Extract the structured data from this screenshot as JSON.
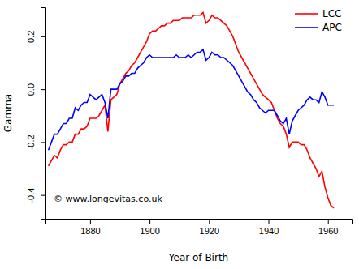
{
  "chart_data": {
    "type": "line",
    "x_label": "Year of Birth",
    "y_label": "Gamma",
    "annotation": "© www.longevitas.co.uk",
    "legend": "top-right",
    "xlim": [
      1865,
      1968
    ],
    "xticks": [
      1880,
      1900,
      1920,
      1940,
      1960
    ],
    "ylim": [
      -0.49,
      0.31
    ],
    "yticks": [
      -0.4,
      -0.2,
      {
        "value": 0,
        "label": "0.0"
      },
      0.2
    ],
    "x": [
      1866,
      1867,
      1868,
      1869,
      1870,
      1871,
      1872,
      1873,
      1874,
      1875,
      1876,
      1877,
      1878,
      1879,
      1880,
      1881,
      1882,
      1883,
      1884,
      1885,
      1886,
      1887,
      1888,
      1889,
      1890,
      1891,
      1892,
      1893,
      1894,
      1895,
      1896,
      1897,
      1898,
      1899,
      1900,
      1901,
      1902,
      1903,
      1904,
      1905,
      1906,
      1907,
      1908,
      1909,
      1910,
      1911,
      1912,
      1913,
      1914,
      1915,
      1916,
      1917,
      1918,
      1919,
      1920,
      1921,
      1922,
      1923,
      1924,
      1925,
      1926,
      1927,
      1928,
      1929,
      1930,
      1931,
      1932,
      1933,
      1934,
      1935,
      1936,
      1937,
      1938,
      1939,
      1940,
      1941,
      1942,
      1943,
      1944,
      1945,
      1946,
      1947,
      1948,
      1949,
      1950,
      1951,
      1952,
      1953,
      1954,
      1955,
      1956,
      1957,
      1958,
      1959,
      1960,
      1961,
      1962
    ],
    "series": [
      {
        "name": "LCC",
        "color": "#ff0000",
        "values": [
          -0.29,
          -0.27,
          -0.25,
          -0.26,
          -0.23,
          -0.21,
          -0.21,
          -0.2,
          -0.2,
          -0.17,
          -0.17,
          -0.15,
          -0.15,
          -0.14,
          -0.11,
          -0.11,
          -0.11,
          -0.1,
          -0.08,
          -0.06,
          -0.16,
          -0.04,
          -0.03,
          -0.02,
          0.02,
          0.04,
          0.06,
          0.07,
          0.09,
          0.1,
          0.12,
          0.14,
          0.16,
          0.18,
          0.21,
          0.22,
          0.22,
          0.23,
          0.24,
          0.24,
          0.25,
          0.25,
          0.26,
          0.26,
          0.26,
          0.27,
          0.27,
          0.27,
          0.27,
          0.28,
          0.28,
          0.28,
          0.29,
          0.25,
          0.26,
          0.28,
          0.27,
          0.27,
          0.26,
          0.25,
          0.24,
          0.22,
          0.2,
          0.17,
          0.14,
          0.12,
          0.1,
          0.08,
          0.06,
          0.04,
          0.02,
          0.0,
          -0.02,
          -0.03,
          -0.04,
          -0.05,
          -0.08,
          -0.11,
          -0.13,
          -0.14,
          -0.17,
          -0.22,
          -0.2,
          -0.2,
          -0.2,
          -0.21,
          -0.21,
          -0.23,
          -0.26,
          -0.28,
          -0.3,
          -0.33,
          -0.31,
          -0.37,
          -0.41,
          -0.44,
          -0.45
        ]
      },
      {
        "name": "APC",
        "color": "#0000ff",
        "values": [
          -0.23,
          -0.2,
          -0.17,
          -0.17,
          -0.15,
          -0.13,
          -0.13,
          -0.11,
          -0.11,
          -0.07,
          -0.08,
          -0.06,
          -0.05,
          -0.05,
          -0.02,
          -0.03,
          -0.04,
          -0.03,
          -0.02,
          -0.05,
          -0.11,
          0.0,
          0.0,
          0.0,
          0.02,
          0.03,
          0.05,
          0.05,
          0.06,
          0.06,
          0.08,
          0.09,
          0.1,
          0.12,
          0.13,
          0.12,
          0.12,
          0.12,
          0.12,
          0.12,
          0.12,
          0.12,
          0.12,
          0.13,
          0.12,
          0.12,
          0.12,
          0.13,
          0.12,
          0.13,
          0.14,
          0.14,
          0.15,
          0.11,
          0.12,
          0.14,
          0.13,
          0.13,
          0.12,
          0.12,
          0.11,
          0.1,
          0.09,
          0.07,
          0.05,
          0.03,
          0.01,
          -0.01,
          -0.02,
          -0.04,
          -0.05,
          -0.07,
          -0.08,
          -0.09,
          -0.08,
          -0.08,
          -0.08,
          -0.1,
          -0.12,
          -0.13,
          -0.11,
          -0.17,
          -0.12,
          -0.1,
          -0.08,
          -0.07,
          -0.06,
          -0.04,
          -0.03,
          -0.04,
          -0.04,
          -0.05,
          -0.01,
          -0.03,
          -0.06,
          -0.06,
          -0.06
        ]
      }
    ]
  }
}
